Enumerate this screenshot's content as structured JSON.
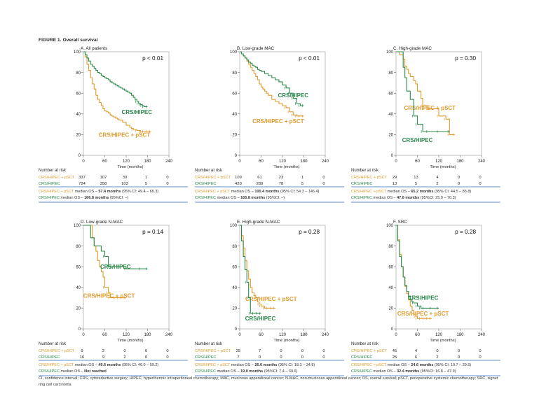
{
  "figure": {
    "title": "FIGURE 1. Overall survival",
    "footnote": "CI, confidence interval; CRS, cytoreductive surgery; HIPEC, hyperthermic intraperitoneal chemotherapy; MAC, mucinous appendiceal cancer; N-MAC, non-mucinous appendiceal cancer; OS, overall survival; pSCT, perioperative systemic chemotherapy; SRC, signet ring cell carcinoma",
    "at_risk_label": "Number at risk",
    "colors": {
      "pSCT": "#e19a2c",
      "HIPEC": "#2a8a4a",
      "sep": "#2f6bb3"
    }
  },
  "chart_data": [
    {
      "type": "line",
      "title": "A. All patients",
      "pvalue": "p < 0.01",
      "xlabel": "Time (months)",
      "xticks": [
        "0",
        "60",
        "120",
        "180",
        "240"
      ],
      "yticks": [
        "0",
        "20",
        "40",
        "60",
        "80",
        "100"
      ],
      "xlim": [
        0,
        240
      ],
      "ylim": [
        0,
        100
      ],
      "series": [
        {
          "name": "CRS/HIPEC",
          "label_pos": [
            150,
            40
          ],
          "x": [
            0,
            5,
            10,
            15,
            20,
            25,
            30,
            35,
            40,
            45,
            50,
            55,
            60,
            65,
            70,
            75,
            80,
            85,
            90,
            95,
            100,
            105,
            110,
            115,
            120,
            125,
            130,
            135,
            140,
            145,
            150,
            155,
            160,
            165,
            170,
            180
          ],
          "y": [
            100,
            97,
            94,
            91,
            88,
            86,
            84,
            82,
            80,
            79,
            77,
            76,
            75,
            74,
            73,
            71,
            70,
            69,
            68,
            67,
            66,
            65,
            64,
            63,
            62,
            61,
            60,
            58,
            56,
            54,
            52,
            50,
            49,
            48,
            47,
            47
          ]
        },
        {
          "name": "CRS/HIPEC + pSCT",
          "label_pos": [
            115,
            18
          ],
          "x": [
            0,
            5,
            10,
            15,
            20,
            25,
            30,
            35,
            40,
            45,
            50,
            55,
            60,
            65,
            70,
            75,
            80,
            85,
            90,
            95,
            100,
            110,
            120,
            130,
            135,
            140,
            150,
            160,
            170,
            180,
            190
          ],
          "y": [
            100,
            95,
            88,
            82,
            75,
            69,
            64,
            58,
            54,
            51,
            48,
            45,
            43,
            42,
            41,
            39,
            38,
            37,
            36,
            35,
            34,
            32,
            29,
            27,
            26,
            25,
            24,
            23,
            23,
            23,
            23
          ]
        }
      ],
      "risk": {
        "pSCT": [
          "337",
          "107",
          "30",
          "1",
          "0"
        ],
        "HIPEC": [
          "724",
          "358",
          "103",
          "5",
          "0"
        ]
      },
      "summary": [
        {
          "label": "CRS/HIPEC + pSCT",
          "pre": " median OS – ",
          "val": "57.4 months",
          "post": " (95% CI: 49.4 – 65.3)"
        },
        {
          "label": "CRS/HIPEC",
          "pre": " median OS – ",
          "val": "166.8 months",
          "post": " (95%CI: –)"
        }
      ]
    },
    {
      "type": "line",
      "title": "B. Low-grade MAC",
      "pvalue": "p < 0.01",
      "xlabel": "Time (months)",
      "xticks": [
        "0",
        "60",
        "120",
        "180",
        "240"
      ],
      "yticks": [
        "0",
        "20",
        "40",
        "60",
        "80",
        "100"
      ],
      "xlim": [
        0,
        240
      ],
      "ylim": [
        0,
        100
      ],
      "series": [
        {
          "name": "CRS/HIPEC",
          "label_pos": [
            150,
            56
          ],
          "x": [
            0,
            5,
            10,
            15,
            20,
            25,
            30,
            35,
            40,
            45,
            50,
            55,
            60,
            70,
            80,
            90,
            100,
            110,
            120,
            130,
            140,
            150,
            160,
            170,
            180
          ],
          "y": [
            100,
            98,
            96,
            94,
            92,
            90,
            89,
            87,
            86,
            85,
            83,
            82,
            81,
            79,
            77,
            75,
            73,
            71,
            68,
            65,
            60,
            55,
            50,
            48,
            48
          ]
        },
        {
          "name": "CRS/HIPEC + pSCT",
          "label_pos": [
            108,
            31
          ],
          "x": [
            0,
            5,
            10,
            15,
            20,
            25,
            30,
            35,
            40,
            45,
            50,
            55,
            60,
            65,
            70,
            75,
            80,
            90,
            100,
            110,
            120,
            130,
            140,
            150,
            160,
            170,
            180
          ],
          "y": [
            100,
            98,
            96,
            94,
            91,
            88,
            85,
            82,
            79,
            76,
            73,
            69,
            66,
            64,
            62,
            60,
            58,
            54,
            52,
            50,
            48,
            46,
            42,
            39,
            38,
            38,
            38
          ]
        }
      ],
      "risk": {
        "pSCT": [
          "109",
          "61",
          "23",
          "1",
          "0"
        ],
        "HIPEC": [
          "420",
          "289",
          "78",
          "5",
          "0"
        ]
      },
      "summary": [
        {
          "label": "CRS/HIPEC + pSCT",
          "pre": " median OS – ",
          "val": "100.4 months",
          "post": " (95% CI: 54.3 – 146.4)"
        },
        {
          "label": "CRS/HIPEC",
          "pre": " median OS – ",
          "val": "165.8 months",
          "post": " (95%CI: –)"
        }
      ]
    },
    {
      "type": "line",
      "title": "C. High-grade MAC",
      "pvalue": "p = 0.30",
      "xlabel": "Time (months)",
      "xticks": [
        "0",
        "60",
        "120",
        "180",
        "240"
      ],
      "yticks": [
        "0",
        "20",
        "40",
        "60",
        "80",
        "100"
      ],
      "xlim": [
        0,
        240
      ],
      "ylim": [
        0,
        100
      ],
      "series": [
        {
          "name": "CRS/HIPEC",
          "label_pos": [
            60,
            13
          ],
          "x": [
            0,
            15,
            20,
            25,
            30,
            40,
            50,
            60,
            75,
            90,
            120,
            150
          ],
          "y": [
            100,
            100,
            85,
            75,
            62,
            54,
            38,
            30,
            23,
            23,
            23,
            23
          ]
        },
        {
          "name": "CRS/HIPEC + pSCT",
          "label_pos": [
            95,
            44
          ],
          "x": [
            0,
            10,
            20,
            25,
            30,
            35,
            40,
            50,
            55,
            60,
            70,
            75,
            90,
            120,
            140,
            150,
            165
          ],
          "y": [
            100,
            97,
            93,
            86,
            83,
            79,
            76,
            72,
            69,
            62,
            55,
            48,
            45,
            38,
            35,
            20,
            20
          ]
        }
      ],
      "risk": {
        "pSCT": [
          "29",
          "13",
          "4",
          "0",
          "0"
        ],
        "HIPEC": [
          "13",
          "5",
          "2",
          "0",
          "0"
        ]
      },
      "summary": [
        {
          "label": "CRS/HIPEC + pSCT",
          "pre": " median OS – ",
          "val": "65.2 months",
          "post": " (95% CI: 44.5 – 85.8)"
        },
        {
          "label": "CRS/HIPEC",
          "pre": " median OS – ",
          "val": "47.6 months",
          "post": " (95%CI: 25.0 – 70.3)"
        }
      ]
    },
    {
      "type": "line",
      "title": "D. Low-grade N-MAC",
      "pvalue": "p = 0.14",
      "xlabel": "Time (months)",
      "xticks": [
        "0",
        "60",
        "120",
        "180",
        "240"
      ],
      "yticks": [
        "0",
        "20",
        "40",
        "60",
        "80",
        "100"
      ],
      "xlim": [
        0,
        240
      ],
      "ylim": [
        0,
        100
      ],
      "series": [
        {
          "name": "CRS/HIPEC",
          "label_pos": [
            90,
            58
          ],
          "x": [
            0,
            15,
            20,
            25,
            30,
            40,
            50,
            60,
            70,
            80,
            120,
            160,
            180
          ],
          "y": [
            100,
            100,
            88,
            88,
            80,
            80,
            75,
            70,
            60,
            60,
            58,
            58,
            58
          ]
        },
        {
          "name": "CRS/HIPEC + pSCT",
          "label_pos": [
            72,
            30
          ],
          "x": [
            0,
            15,
            25,
            30,
            35,
            40,
            45,
            50,
            55,
            60,
            70,
            75,
            90,
            100,
            120
          ],
          "y": [
            100,
            100,
            88,
            80,
            75,
            66,
            60,
            55,
            50,
            40,
            35,
            30,
            30,
            30,
            30
          ]
        }
      ],
      "risk": {
        "pSCT": [
          "9",
          "2",
          "0",
          "0",
          "0"
        ],
        "HIPEC": [
          "16",
          "9",
          "2",
          "0",
          "0"
        ]
      },
      "summary": [
        {
          "label": "CRS/HIPEC + pSCT",
          "pre": " median OS – ",
          "val": "49.6 months",
          "post": " (95% CI: 40.0 – 59.2)"
        },
        {
          "label": "CRS/HIPEC",
          "pre": " median OS – ",
          "val": "Not reached",
          "post": ""
        }
      ]
    },
    {
      "type": "line",
      "title": "E. High-grade N-MAC",
      "pvalue": "p = 0.28",
      "xlabel": "Time (months)",
      "xticks": [
        "0",
        "60",
        "120",
        "180",
        "240"
      ],
      "yticks": [
        "0",
        "20",
        "40",
        "60",
        "80",
        "100"
      ],
      "xlim": [
        0,
        240
      ],
      "ylim": [
        0,
        100
      ],
      "series": [
        {
          "name": "CRS/HIPEC",
          "label_pos": [
            58,
            8
          ],
          "x": [
            0,
            5,
            10,
            15,
            20,
            25,
            30,
            40,
            50,
            60
          ],
          "y": [
            100,
            85,
            70,
            57,
            45,
            30,
            15,
            15,
            15,
            15
          ]
        },
        {
          "name": "CRS/HIPEC + pSCT",
          "label_pos": [
            88,
            27
          ],
          "x": [
            0,
            5,
            10,
            15,
            20,
            25,
            30,
            35,
            40,
            45,
            50,
            55,
            60,
            70,
            80,
            90,
            100
          ],
          "y": [
            100,
            90,
            78,
            66,
            56,
            48,
            40,
            35,
            32,
            30,
            26,
            24,
            22,
            20,
            20,
            20,
            20
          ]
        }
      ],
      "risk": {
        "pSCT": [
          "25",
          "7",
          "0",
          "0",
          "0"
        ],
        "HIPEC": [
          "7",
          "0",
          "0",
          "0",
          "0"
        ]
      },
      "summary": [
        {
          "label": "CRS/HIPEC + pSCT",
          "pre": " median OS – ",
          "val": "26.6 months",
          "post": " (95% CI: 18.3 – 34.8)"
        },
        {
          "label": "CRS/HIPEC",
          "pre": " median OS – ",
          "val": "19.0 months",
          "post": " (95%CI: 7.4 – 30.6)"
        }
      ]
    },
    {
      "type": "line",
      "title": "F. SRC",
      "pvalue": "p = 0.28",
      "xlabel": "Time (months)",
      "xticks": [
        "0",
        "60",
        "120",
        "180",
        "240"
      ],
      "yticks": [
        "0",
        "20",
        "40",
        "60",
        "80",
        "100"
      ],
      "xlim": [
        0,
        240
      ],
      "ylim": [
        0,
        100
      ],
      "series": [
        {
          "name": "CRS/HIPEC",
          "label_pos": [
            76,
            28
          ],
          "x": [
            0,
            5,
            10,
            15,
            20,
            25,
            30,
            35,
            40,
            45,
            50,
            60,
            70,
            80,
            100,
            120
          ],
          "y": [
            100,
            85,
            70,
            60,
            50,
            42,
            36,
            31,
            28,
            26,
            25,
            22,
            20,
            20,
            20,
            20
          ]
        },
        {
          "name": "CRS/HIPEC + pSCT",
          "label_pos": [
            76,
            13
          ],
          "x": [
            0,
            5,
            10,
            15,
            20,
            25,
            30,
            35,
            40,
            45,
            50,
            55,
            60,
            70,
            80,
            90,
            100
          ],
          "y": [
            100,
            86,
            72,
            60,
            50,
            41,
            34,
            28,
            22,
            18,
            14,
            12,
            10,
            10,
            10,
            10,
            10
          ]
        }
      ],
      "risk": {
        "pSCT": [
          "45",
          "4",
          "0",
          "0",
          "0"
        ],
        "HIPEC": [
          "25",
          "6",
          "2",
          "0",
          "0"
        ]
      },
      "summary": [
        {
          "label": "CRS/HIPEC + pSCT",
          "pre": " median OS – ",
          "val": "24.6 months",
          "post": " (95% CI: 19.7 – 29.5)"
        },
        {
          "label": "CRS/HIPEC",
          "pre": " median OS – ",
          "val": "32.4 months",
          "post": " (95%CI: 16.8 – 47.9)"
        }
      ]
    }
  ]
}
